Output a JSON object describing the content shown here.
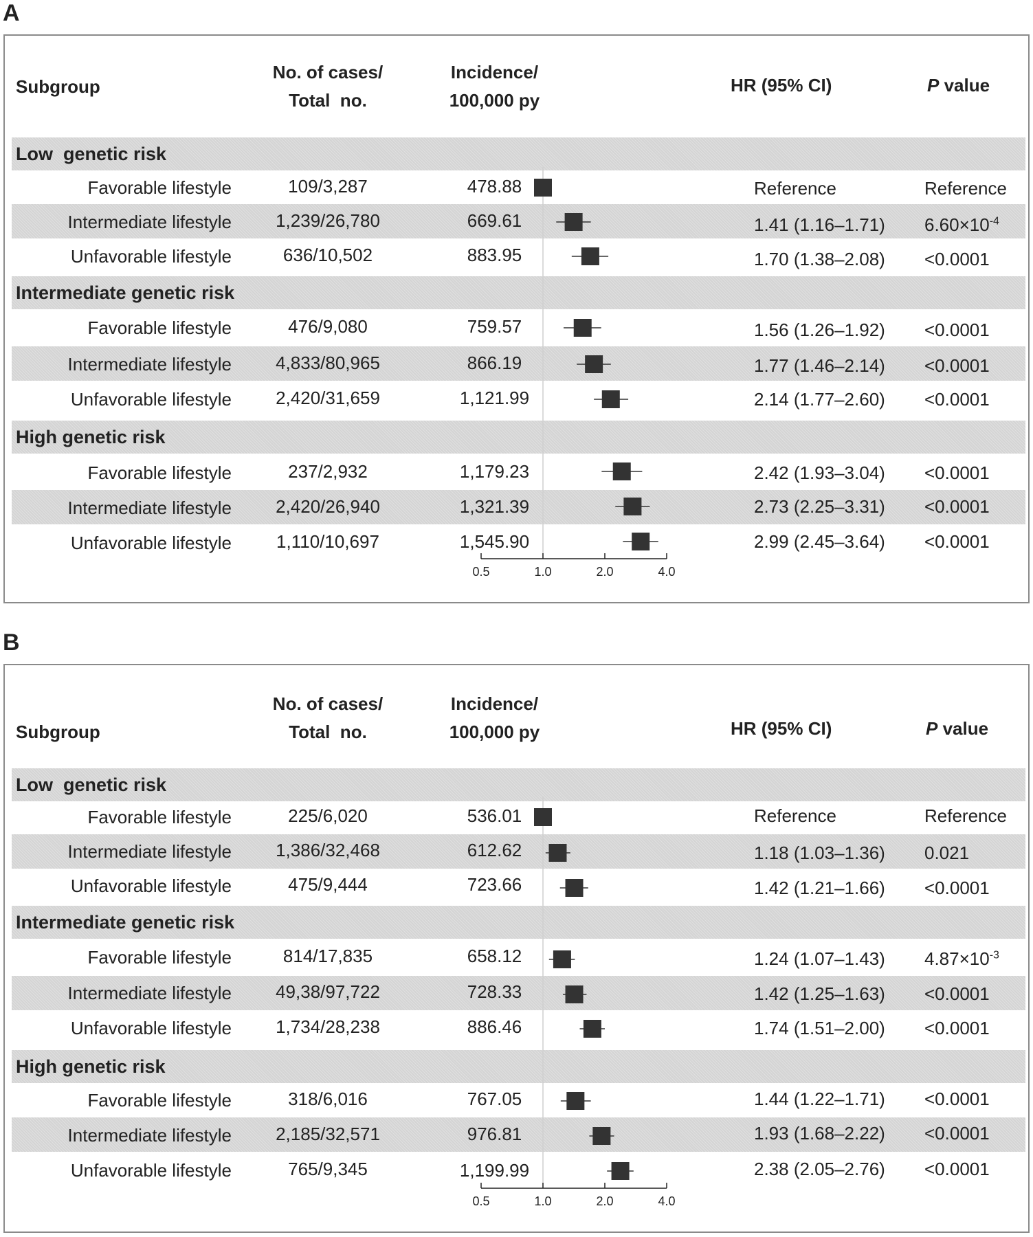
{
  "panels": [
    {
      "letter": "A",
      "headers": {
        "subgroup": "Subgroup",
        "cases_line1": "No. of cases/",
        "cases_line2": "Total  no.",
        "incidence_line1": "Incidence/",
        "incidence_line2": "100,000 py",
        "hr": "HR (95% CI)",
        "p_italic": "P",
        "p_rest": " value"
      },
      "groups": [
        {
          "label": "Low  genetic risk",
          "rows": [
            {
              "subgroup": "Favorable lifestyle",
              "cases": "109/3,287",
              "incidence": "478.88",
              "hr_text": "Reference",
              "p_text": "Reference",
              "p_exp": ""
            },
            {
              "subgroup": "Intermediate lifestyle",
              "cases": "1,239/26,780",
              "incidence": "669.61",
              "hr_text": "1.41 (1.16–1.71)",
              "p_text": "6.60×10",
              "p_exp": "-4"
            },
            {
              "subgroup": "Unfavorable lifestyle",
              "cases": "636/10,502",
              "incidence": "883.95",
              "hr_text": "1.70 (1.38–2.08)",
              "p_text": "<0.0001",
              "p_exp": ""
            }
          ]
        },
        {
          "label": "Intermediate genetic risk",
          "rows": [
            {
              "subgroup": "Favorable lifestyle",
              "cases": "476/9,080",
              "incidence": "759.57",
              "hr_text": "1.56 (1.26–1.92)",
              "p_text": "<0.0001",
              "p_exp": ""
            },
            {
              "subgroup": "Intermediate lifestyle",
              "cases": "4,833/80,965",
              "incidence": "866.19",
              "hr_text": "1.77 (1.46–2.14)",
              "p_text": "<0.0001",
              "p_exp": ""
            },
            {
              "subgroup": "Unfavorable lifestyle",
              "cases": "2,420/31,659",
              "incidence": "1,121.99",
              "hr_text": "2.14 (1.77–2.60)",
              "p_text": "<0.0001",
              "p_exp": ""
            }
          ]
        },
        {
          "label": "High genetic risk",
          "rows": [
            {
              "subgroup": "Favorable lifestyle",
              "cases": "237/2,932",
              "incidence": "1,179.23",
              "hr_text": "2.42 (1.93–3.04)",
              "p_text": "<0.0001",
              "p_exp": ""
            },
            {
              "subgroup": "Intermediate lifestyle",
              "cases": "2,420/26,940",
              "incidence": "1,321.39",
              "hr_text": "2.73 (2.25–3.31)",
              "p_text": "<0.0001",
              "p_exp": ""
            },
            {
              "subgroup": "Unfavorable lifestyle",
              "cases": "1,110/10,697",
              "incidence": "1,545.90",
              "hr_text": "2.99 (2.45–3.64)",
              "p_text": "<0.0001",
              "p_exp": ""
            }
          ]
        }
      ],
      "axis_ticks": [
        "0.5",
        "1.0",
        "2.0",
        "4.0"
      ]
    },
    {
      "letter": "B",
      "headers": {
        "subgroup": "Subgroup",
        "cases_line1": "No. of cases/",
        "cases_line2": "Total  no.",
        "incidence_line1": "Incidence/",
        "incidence_line2": "100,000 py",
        "hr": "HR (95% CI)",
        "p_italic": "P",
        "p_rest": " value"
      },
      "groups": [
        {
          "label": "Low  genetic risk",
          "rows": [
            {
              "subgroup": "Favorable lifestyle",
              "cases": "225/6,020",
              "incidence": "536.01",
              "hr_text": "Reference",
              "p_text": "Reference",
              "p_exp": ""
            },
            {
              "subgroup": "Intermediate lifestyle",
              "cases": "1,386/32,468",
              "incidence": "612.62",
              "hr_text": "1.18 (1.03–1.36)",
              "p_text": "0.021",
              "p_exp": ""
            },
            {
              "subgroup": "Unfavorable lifestyle",
              "cases": "475/9,444",
              "incidence": "723.66",
              "hr_text": "1.42 (1.21–1.66)",
              "p_text": "<0.0001",
              "p_exp": ""
            }
          ]
        },
        {
          "label": "Intermediate genetic risk",
          "rows": [
            {
              "subgroup": "Favorable lifestyle",
              "cases": "814/17,835",
              "incidence": "658.12",
              "hr_text": "1.24 (1.07–1.43)",
              "p_text": "4.87×10",
              "p_exp": "-3"
            },
            {
              "subgroup": "Intermediate lifestyle",
              "cases": "49,38/97,722",
              "incidence": "728.33",
              "hr_text": "1.42 (1.25–1.63)",
              "p_text": "<0.0001",
              "p_exp": ""
            },
            {
              "subgroup": "Unfavorable lifestyle",
              "cases": "1,734/28,238",
              "incidence": "886.46",
              "hr_text": "1.74 (1.51–2.00)",
              "p_text": "<0.0001",
              "p_exp": ""
            }
          ]
        },
        {
          "label": "High genetic risk",
          "rows": [
            {
              "subgroup": "Favorable lifestyle",
              "cases": "318/6,016",
              "incidence": "767.05",
              "hr_text": "1.44 (1.22–1.71)",
              "p_text": "<0.0001",
              "p_exp": ""
            },
            {
              "subgroup": "Intermediate lifestyle",
              "cases": "2,185/32,571",
              "incidence": "976.81",
              "hr_text": "1.93 (1.68–2.22)",
              "p_text": "<0.0001",
              "p_exp": ""
            },
            {
              "subgroup": "Unfavorable lifestyle",
              "cases": "765/9,345",
              "incidence": "1,199.99",
              "hr_text": "2.38 (2.05–2.76)",
              "p_text": "<0.0001",
              "p_exp": ""
            }
          ]
        }
      ],
      "axis_ticks": [
        "0.5",
        "1.0",
        "2.0",
        "4.0"
      ]
    }
  ],
  "chart_data": [
    {
      "type": "forest",
      "scale": "log2",
      "xlim": [
        0.5,
        4.0
      ],
      "xticks": [
        0.5,
        1.0,
        2.0,
        4.0
      ],
      "reference_line": 1.0,
      "points": [
        {
          "hr": 1.0,
          "lo": 1.0,
          "hi": 1.0
        },
        {
          "hr": 1.41,
          "lo": 1.16,
          "hi": 1.71
        },
        {
          "hr": 1.7,
          "lo": 1.38,
          "hi": 2.08
        },
        {
          "hr": 1.56,
          "lo": 1.26,
          "hi": 1.92
        },
        {
          "hr": 1.77,
          "lo": 1.46,
          "hi": 2.14
        },
        {
          "hr": 2.14,
          "lo": 1.77,
          "hi": 2.6
        },
        {
          "hr": 2.42,
          "lo": 1.93,
          "hi": 3.04
        },
        {
          "hr": 2.73,
          "lo": 2.25,
          "hi": 3.31
        },
        {
          "hr": 2.99,
          "lo": 2.45,
          "hi": 3.64
        }
      ]
    },
    {
      "type": "forest",
      "scale": "log2",
      "xlim": [
        0.5,
        4.0
      ],
      "xticks": [
        0.5,
        1.0,
        2.0,
        4.0
      ],
      "reference_line": 1.0,
      "points": [
        {
          "hr": 1.0,
          "lo": 1.0,
          "hi": 1.0
        },
        {
          "hr": 1.18,
          "lo": 1.03,
          "hi": 1.36
        },
        {
          "hr": 1.42,
          "lo": 1.21,
          "hi": 1.66
        },
        {
          "hr": 1.24,
          "lo": 1.07,
          "hi": 1.43
        },
        {
          "hr": 1.42,
          "lo": 1.25,
          "hi": 1.63
        },
        {
          "hr": 1.74,
          "lo": 1.51,
          "hi": 2.0
        },
        {
          "hr": 1.44,
          "lo": 1.22,
          "hi": 1.71
        },
        {
          "hr": 1.93,
          "lo": 1.68,
          "hi": 2.22
        },
        {
          "hr": 2.38,
          "lo": 2.05,
          "hi": 2.76
        }
      ]
    }
  ]
}
